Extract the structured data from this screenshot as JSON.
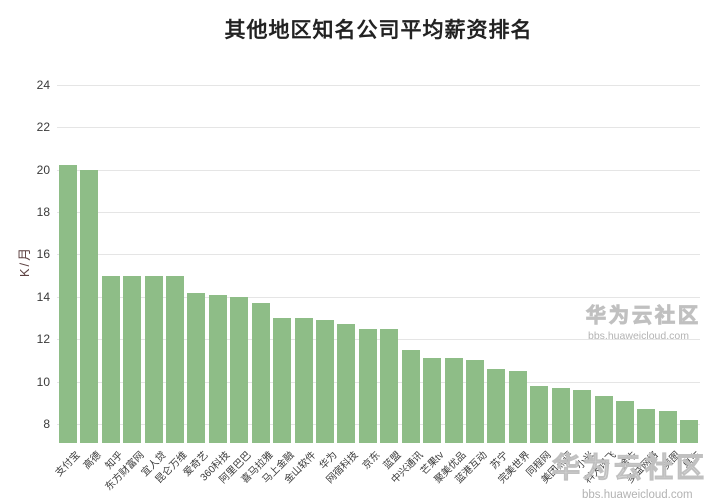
{
  "title": "其他地区知名公司平均薪资排名",
  "watermark": {
    "brand": "华为云社区",
    "url": "bbs.huaweicloud.com"
  },
  "chart_data": {
    "type": "bar",
    "title": "其他地区知名公司平均薪资排名",
    "xlabel": "",
    "ylabel": "K/月",
    "ylim": [
      7.1,
      24.7
    ],
    "yticks": [
      8,
      10,
      12,
      14,
      16,
      18,
      20,
      22,
      24
    ],
    "grid": true,
    "bar_color": "#8ebd87",
    "categories": [
      "支付宝",
      "高德",
      "知乎",
      "东方财富网",
      "宜人贷",
      "昆仑万维",
      "爱奇艺",
      "360科技",
      "阿里巴巴",
      "喜马拉雅",
      "马上金融",
      "金山软件",
      "华为",
      "网宿科技",
      "京东",
      "蓝盟",
      "中兴通讯",
      "芒果tv",
      "聚美优品",
      "蓝港互动",
      "苏宁",
      "完美世界",
      "同程网",
      "美团点评",
      "小米",
      "科大讯飞",
      "途牛",
      "多益网络",
      "美图",
      "易车"
    ],
    "values": [
      20.2,
      20,
      15,
      15,
      15,
      15,
      14.2,
      14.1,
      14,
      13.7,
      13,
      13,
      12.9,
      12.7,
      12.5,
      12.5,
      11.5,
      11.1,
      11.1,
      11,
      10.6,
      10.5,
      9.8,
      9.7,
      9.6,
      9.3,
      9.1,
      8.7,
      8.6,
      8.2
    ]
  }
}
